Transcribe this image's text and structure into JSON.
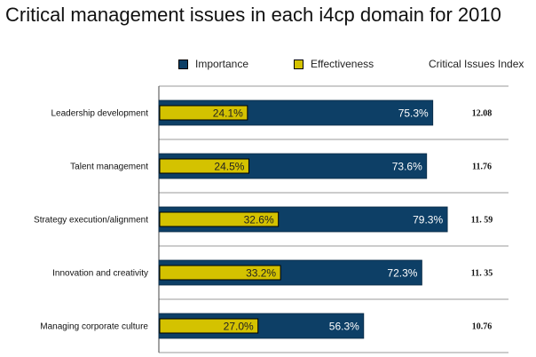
{
  "chart_data": {
    "type": "bar",
    "orientation": "horizontal",
    "title": "Critical management issues in each i4cp domain for 2010",
    "categories": [
      "Leadership development",
      "Talent management",
      "Strategy execution/alignment",
      "Innovation and creativity",
      "Managing corporate culture"
    ],
    "series": [
      {
        "name": "Importance",
        "color": "#0d3f66",
        "values": [
          75.3,
          73.6,
          79.3,
          72.3,
          56.3
        ],
        "labels": [
          "75.3%",
          "73.6%",
          "79.3%",
          "72.3%",
          "56.3%"
        ]
      },
      {
        "name": "Effectiveness",
        "color": "#d4c200",
        "values": [
          24.1,
          24.5,
          32.6,
          33.2,
          27.0
        ],
        "labels": [
          "24.1%",
          "24.5%",
          "32.6%",
          "33.2%",
          "27.0%"
        ]
      }
    ],
    "extra_column": {
      "header": "Critical Issues Index",
      "values": [
        "12.08",
        "11.76",
        "11. 59",
        "11. 35",
        "10.76"
      ]
    },
    "xlim": [
      0,
      100
    ],
    "grid": true,
    "legend_position": "top"
  }
}
